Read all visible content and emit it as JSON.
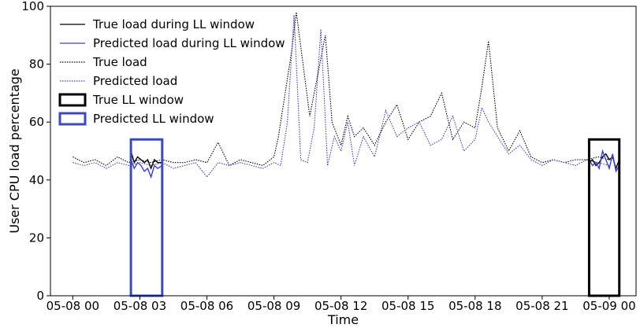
{
  "chart_data": {
    "type": "line",
    "xlabel": "Time",
    "ylabel": "User CPU load percentage",
    "ylim": [
      0,
      100
    ],
    "yticks": [
      0,
      20,
      40,
      60,
      80,
      100
    ],
    "xlim_hours": [
      -1,
      25.2
    ],
    "xticks": [
      {
        "h": 0,
        "label": "05-08 00"
      },
      {
        "h": 3,
        "label": "05-08 03"
      },
      {
        "h": 6,
        "label": "05-08 06"
      },
      {
        "h": 9,
        "label": "05-08 09"
      },
      {
        "h": 12,
        "label": "05-08 12"
      },
      {
        "h": 15,
        "label": "05-08 15"
      },
      {
        "h": 18,
        "label": "05-08 18"
      },
      {
        "h": 21,
        "label": "05-08 21"
      },
      {
        "h": 24,
        "label": "05-09 00"
      }
    ],
    "legend_position": "top-left",
    "legend": [
      {
        "key": "true_ll",
        "label": "True load during LL window"
      },
      {
        "key": "pred_ll",
        "label": "Predicted load during LL window"
      },
      {
        "key": "true",
        "label": "True load"
      },
      {
        "key": "pred",
        "label": "Predicted load"
      },
      {
        "key": "true_win",
        "label": "True LL window"
      },
      {
        "key": "pred_win",
        "label": "Predicted LL window"
      }
    ],
    "colors": {
      "true": "#000000",
      "predicted": "#3b3bdc",
      "predicted_window": "#3a4ac4"
    },
    "true_load": {
      "x": [
        0,
        0.5,
        1,
        1.5,
        2,
        2.5,
        3,
        3.5,
        4,
        4.5,
        5,
        5.5,
        6,
        6.5,
        7,
        7.5,
        8,
        8.5,
        9,
        9.2,
        9.5,
        9.8,
        10,
        10.3,
        10.6,
        11,
        11.3,
        11.6,
        12,
        12.3,
        12.6,
        13,
        13.5,
        14,
        14.5,
        15,
        15.5,
        16,
        16.5,
        17,
        17.5,
        18,
        18.3,
        18.6,
        19,
        19.5,
        20,
        20.5,
        21,
        21.5,
        22,
        22.5,
        23,
        23.5,
        24
      ],
      "y": [
        48,
        46,
        47,
        45,
        48,
        46,
        47,
        46,
        47,
        46,
        46,
        47,
        46,
        53,
        45,
        47,
        46,
        45,
        48,
        55,
        70,
        85,
        98,
        80,
        62,
        78,
        90,
        60,
        52,
        62,
        55,
        58,
        52,
        60,
        66,
        54,
        60,
        62,
        70,
        54,
        60,
        58,
        72,
        88,
        58,
        50,
        57,
        48,
        46,
        47,
        46,
        47,
        47,
        48,
        47
      ]
    },
    "predicted_load": {
      "x": [
        0,
        0.5,
        1,
        1.5,
        2,
        2.5,
        3,
        3.5,
        4,
        4.5,
        5,
        5.5,
        6,
        6.5,
        7,
        7.5,
        8,
        8.5,
        9,
        9.3,
        9.6,
        9.9,
        10.2,
        10.5,
        10.8,
        11.1,
        11.4,
        11.7,
        12,
        12.3,
        12.6,
        13,
        13.5,
        14,
        14.5,
        15,
        15.5,
        16,
        16.5,
        17,
        17.5,
        18,
        18.3,
        18.6,
        19,
        19.5,
        20,
        20.5,
        21,
        21.5,
        22,
        22.5,
        23,
        23.5,
        24
      ],
      "y": [
        46,
        45,
        46,
        44,
        46,
        45,
        46,
        45,
        46,
        44,
        45,
        46,
        41,
        46,
        45,
        46,
        45,
        44,
        46,
        45,
        60,
        97,
        47,
        46,
        58,
        92,
        45,
        55,
        50,
        60,
        45,
        55,
        48,
        64,
        55,
        58,
        60,
        52,
        54,
        62,
        50,
        54,
        65,
        60,
        55,
        49,
        52,
        47,
        45,
        47,
        46,
        45,
        47,
        46,
        45
      ]
    },
    "true_ll_segment": {
      "x": [
        2.6,
        2.75,
        2.9,
        3.05,
        3.2,
        3.35,
        3.5,
        3.65,
        3.8,
        4.0
      ],
      "y": [
        50,
        46,
        48,
        47,
        46,
        47,
        44,
        47,
        46,
        46
      ]
    },
    "pred_ll_segment": {
      "x": [
        2.6,
        2.75,
        2.9,
        3.05,
        3.2,
        3.35,
        3.5,
        3.65,
        3.8,
        4.0
      ],
      "y": [
        47,
        44,
        46,
        45,
        43,
        44,
        41,
        45,
        44,
        45
      ]
    },
    "true_ll_segment_2": {
      "x": [
        23.1,
        23.25,
        23.4,
        23.55,
        23.7,
        23.85,
        24.0,
        24.15,
        24.3,
        24.45
      ],
      "y": [
        46,
        47,
        45,
        46,
        48,
        49,
        47,
        48,
        44,
        47
      ]
    },
    "pred_ll_segment_2": {
      "x": [
        23.1,
        23.25,
        23.4,
        23.55,
        23.7,
        23.85,
        24.0,
        24.15,
        24.3,
        24.45
      ],
      "y": [
        47,
        45,
        46,
        44,
        50,
        47,
        44,
        49,
        43,
        45
      ]
    },
    "predicted_ll_window": {
      "x_start": 2.6,
      "x_end": 4.0,
      "y_min": 0,
      "y_max": 54
    },
    "true_ll_window": {
      "x_start": 23.1,
      "x_end": 24.45,
      "y_min": 0,
      "y_max": 54
    }
  }
}
